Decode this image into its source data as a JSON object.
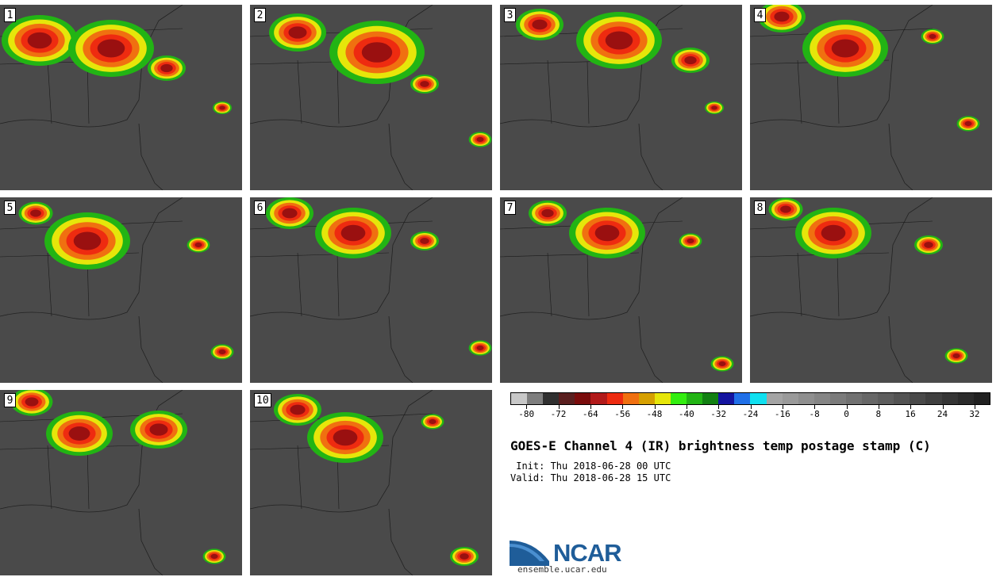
{
  "panels": [
    {
      "label": "1"
    },
    {
      "label": "2"
    },
    {
      "label": "3"
    },
    {
      "label": "4"
    },
    {
      "label": "5"
    },
    {
      "label": "6"
    },
    {
      "label": "7"
    },
    {
      "label": "8"
    },
    {
      "label": "9"
    },
    {
      "label": "10"
    }
  ],
  "colorbar": {
    "colors": [
      "#c8c8c8",
      "#7e7e7e",
      "#303030",
      "#5a1f1f",
      "#7a0c0c",
      "#b21a1a",
      "#ee2b10",
      "#f07010",
      "#d6a000",
      "#e6e60a",
      "#33ee10",
      "#22b414",
      "#128012",
      "#1414a0",
      "#2070e8",
      "#10e0f0",
      "#a4a4a4",
      "#9a9a9a",
      "#8f8f8f",
      "#858585",
      "#7b7b7b",
      "#717171",
      "#676767",
      "#5d5d5d",
      "#535353",
      "#494949",
      "#3f3f3f",
      "#353535",
      "#2b2b2b",
      "#212121"
    ],
    "tick_labels": [
      "-80",
      "-72",
      "-64",
      "-56",
      "-48",
      "-40",
      "-32",
      "-24",
      "-16",
      "-8",
      "0",
      "8",
      "16",
      "24",
      "32"
    ]
  },
  "title": "GOES-E Channel 4 (IR) brightness temp postage stamp (C)",
  "init": " Init: Thu 2018-06-28 00 UTC",
  "valid": "Valid: Thu 2018-06-28 15 UTC",
  "logo": {
    "text": "NCAR",
    "url": "ensemble.ucar.edu"
  }
}
